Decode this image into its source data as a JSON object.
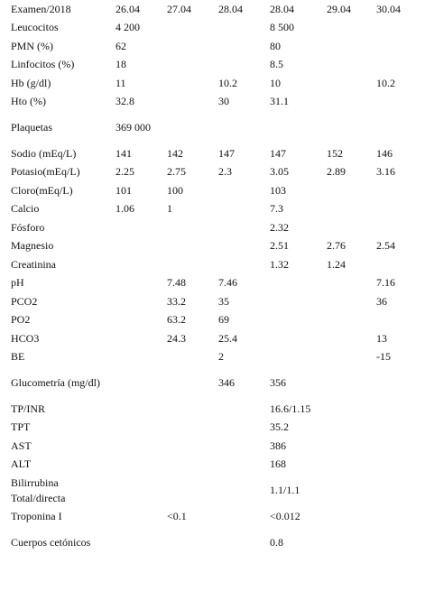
{
  "table": {
    "header": [
      "Examen/2018",
      "26.04",
      "27.04",
      "28.04",
      "28.04",
      "29.04",
      "30.04"
    ],
    "rows": [
      {
        "label": "Leucocitos",
        "cells": [
          "4 200",
          "",
          "",
          "8 500",
          "",
          ""
        ]
      },
      {
        "label": "PMN (%)",
        "cells": [
          "62",
          "",
          "",
          "80",
          "",
          ""
        ]
      },
      {
        "label": "Linfocitos (%)",
        "cells": [
          "18",
          "",
          "",
          "8.5",
          "",
          ""
        ]
      },
      {
        "label": "Hb (g/dl)",
        "cells": [
          "11",
          "",
          "10.2",
          "10",
          "",
          "10.2"
        ]
      },
      {
        "label": "Hto (%)",
        "cells": [
          "32.8",
          "",
          "30",
          "31.1",
          "",
          ""
        ]
      },
      {
        "label": "Plaquetas",
        "cells": [
          "369 000",
          "",
          "",
          "",
          "",
          ""
        ],
        "tall": true
      },
      {
        "label": "Sodio (mEq/L)",
        "cells": [
          "141",
          "142",
          "147",
          "147",
          "152",
          "146"
        ]
      },
      {
        "label": "Potasio(mEq/L)",
        "cells": [
          "2.25",
          "2.75",
          "2.3",
          "3.05",
          "2.89",
          "3.16"
        ]
      },
      {
        "label": "Cloro(mEq/L)",
        "cells": [
          "101",
          "100",
          "",
          "103",
          "",
          ""
        ]
      },
      {
        "label": "Calcio",
        "cells": [
          "1.06",
          "1",
          "",
          "7.3",
          "",
          ""
        ]
      },
      {
        "label": "Fósforo",
        "cells": [
          "",
          "",
          "",
          "2.32",
          "",
          ""
        ]
      },
      {
        "label": "Magnesio",
        "cells": [
          "",
          "",
          "",
          "2.51",
          "2.76",
          "2.54"
        ]
      },
      {
        "label": "Creatinina",
        "cells": [
          "",
          "",
          "",
          "1.32",
          "1.24",
          ""
        ]
      },
      {
        "label": "pH",
        "cells": [
          "",
          "7.48",
          "7.46",
          "",
          "",
          "7.16"
        ]
      },
      {
        "label": "PCO2",
        "cells": [
          "",
          "33.2",
          "35",
          "",
          "",
          "36"
        ]
      },
      {
        "label": "PO2",
        "cells": [
          "",
          "63.2",
          "69",
          "",
          "",
          ""
        ]
      },
      {
        "label": "HCO3",
        "cells": [
          "",
          "24.3",
          "25.4",
          "",
          "",
          "13"
        ]
      },
      {
        "label": "BE",
        "cells": [
          "",
          "",
          "2",
          "",
          "",
          "-15"
        ]
      },
      {
        "label": "Glucometría (mg/dl)",
        "cells": [
          "",
          "",
          "346",
          "356",
          "",
          ""
        ],
        "tall": true
      },
      {
        "label": "TP/INR",
        "cells": [
          "",
          "",
          "",
          "16.6/1.15",
          "",
          ""
        ]
      },
      {
        "label": "TPT",
        "cells": [
          "",
          "",
          "",
          "35.2",
          "",
          ""
        ]
      },
      {
        "label": "AST",
        "cells": [
          "",
          "",
          "",
          "386",
          "",
          ""
        ]
      },
      {
        "label": "ALT",
        "cells": [
          "",
          "",
          "",
          "168",
          "",
          ""
        ]
      },
      {
        "label": "Bilirrubina Total/directa",
        "cells": [
          "",
          "",
          "",
          "1.1/1.1",
          "",
          ""
        ],
        "tall": true
      },
      {
        "label": "Troponina I",
        "cells": [
          "",
          "<0.1",
          "",
          "<0.012",
          "",
          ""
        ]
      },
      {
        "label": "Cuerpos cetónicos",
        "cells": [
          "",
          "",
          "",
          "0.8",
          "",
          ""
        ],
        "tall": true
      }
    ]
  }
}
